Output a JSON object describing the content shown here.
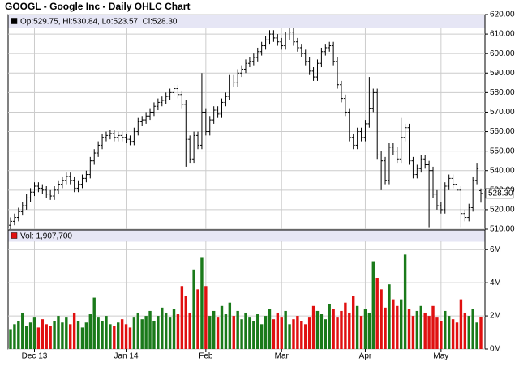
{
  "chart_data": [
    {
      "type": "ohlc",
      "title": "GOOGL - Google Inc - Daily OHLC Chart",
      "header": "Op:529.75, Hi:530.84, Lo:523.57, Cl:528.30",
      "color": "#000000",
      "categories": [
        null,
        null,
        null,
        null,
        null,
        null,
        "Dec 13",
        null,
        null,
        null,
        null,
        null,
        null,
        null,
        null,
        null,
        null,
        null,
        null,
        null,
        null,
        null,
        null,
        null,
        null,
        null,
        null,
        null,
        null,
        "Jan 14",
        null,
        null,
        null,
        null,
        null,
        null,
        null,
        null,
        null,
        null,
        null,
        null,
        null,
        null,
        null,
        null,
        null,
        null,
        null,
        "Feb",
        null,
        null,
        null,
        null,
        null,
        null,
        null,
        null,
        null,
        null,
        null,
        null,
        null,
        null,
        null,
        null,
        null,
        null,
        "Mar",
        null,
        null,
        null,
        null,
        null,
        null,
        null,
        null,
        null,
        null,
        null,
        null,
        null,
        null,
        null,
        null,
        null,
        null,
        null,
        null,
        "Apr",
        null,
        null,
        null,
        null,
        null,
        null,
        null,
        null,
        null,
        null,
        null,
        null,
        null,
        null,
        null,
        null,
        null,
        null,
        "May",
        null,
        null,
        null,
        null,
        null,
        null,
        null,
        null,
        null,
        null
      ],
      "open": [
        512,
        514,
        516,
        519,
        522,
        526,
        529,
        532,
        531,
        530,
        528,
        527,
        530,
        533,
        535,
        537,
        535,
        531,
        533,
        536,
        538,
        545,
        549,
        553,
        557,
        558,
        559,
        557,
        558,
        557,
        556,
        555,
        560,
        565,
        566,
        568,
        570,
        573,
        575,
        576,
        578,
        580,
        582,
        579,
        574,
        556,
        546,
        558,
        553,
        570,
        560,
        566,
        571,
        569,
        575,
        578,
        587,
        585,
        590,
        592,
        595,
        596,
        598,
        601,
        604,
        607,
        610,
        608,
        606,
        604,
        609,
        611,
        606,
        603,
        600,
        596,
        591,
        588,
        595,
        601,
        603,
        604,
        596,
        584,
        577,
        570,
        557,
        553,
        560,
        557,
        564,
        572,
        580,
        548,
        545,
        535,
        552,
        550,
        546,
        557,
        562,
        545,
        538,
        541,
        546,
        543,
        540,
        528,
        522,
        520,
        532,
        536,
        533,
        530,
        518,
        516,
        521,
        535,
        529.75
      ],
      "high": [
        516,
        518,
        521,
        524,
        528,
        531,
        534,
        534,
        533,
        532,
        530,
        532,
        535,
        537,
        539,
        539,
        537,
        535,
        538,
        540,
        547,
        551,
        555,
        559,
        560,
        561,
        561,
        560,
        560,
        559,
        558,
        562,
        567,
        568,
        570,
        572,
        575,
        577,
        578,
        580,
        582,
        584,
        584,
        581,
        576,
        558,
        560,
        560,
        590,
        572,
        568,
        573,
        573,
        577,
        580,
        589,
        589,
        592,
        594,
        597,
        598,
        600,
        603,
        606,
        609,
        612,
        612,
        610,
        608,
        611,
        613,
        613,
        608,
        605,
        602,
        598,
        593,
        597,
        603,
        605,
        606,
        606,
        598,
        586,
        579,
        572,
        559,
        562,
        562,
        566,
        588,
        582,
        582,
        550,
        547,
        554,
        554,
        552,
        567,
        564,
        564,
        547,
        543,
        548,
        548,
        545,
        542,
        530,
        524,
        534,
        538,
        538,
        535,
        532,
        520,
        523,
        537,
        544,
        530.84
      ],
      "low": [
        510,
        512,
        514,
        517,
        520,
        524,
        527,
        529,
        528,
        526,
        525,
        525,
        528,
        531,
        533,
        533,
        529,
        529,
        531,
        534,
        536,
        543,
        547,
        551,
        555,
        556,
        555,
        555,
        555,
        554,
        553,
        553,
        558,
        563,
        564,
        566,
        568,
        571,
        573,
        574,
        576,
        578,
        577,
        572,
        542,
        544,
        544,
        551,
        551,
        558,
        558,
        564,
        567,
        567,
        573,
        576,
        583,
        583,
        588,
        590,
        593,
        594,
        596,
        599,
        602,
        605,
        606,
        604,
        602,
        602,
        607,
        604,
        601,
        598,
        594,
        589,
        586,
        586,
        593,
        599,
        601,
        594,
        582,
        575,
        568,
        555,
        551,
        551,
        555,
        555,
        562,
        570,
        546,
        530,
        533,
        533,
        548,
        544,
        544,
        555,
        543,
        536,
        536,
        539,
        541,
        511,
        526,
        520,
        518,
        518,
        530,
        531,
        528,
        511,
        514,
        514,
        519,
        533,
        523.57
      ],
      "close": [
        514,
        516,
        519,
        522,
        526,
        529,
        532,
        531,
        530,
        528,
        527,
        530,
        533,
        535,
        537,
        535,
        531,
        533,
        536,
        538,
        545,
        549,
        553,
        557,
        558,
        559,
        557,
        558,
        557,
        556,
        555,
        560,
        565,
        566,
        568,
        570,
        573,
        575,
        576,
        578,
        580,
        582,
        579,
        574,
        556,
        546,
        558,
        553,
        570,
        560,
        566,
        571,
        569,
        575,
        578,
        587,
        585,
        590,
        592,
        595,
        596,
        598,
        601,
        604,
        607,
        610,
        608,
        606,
        604,
        609,
        611,
        606,
        603,
        600,
        596,
        591,
        588,
        595,
        601,
        603,
        604,
        596,
        584,
        577,
        570,
        557,
        553,
        560,
        557,
        564,
        572,
        580,
        548,
        545,
        535,
        552,
        550,
        546,
        557,
        562,
        545,
        538,
        541,
        546,
        543,
        540,
        528,
        522,
        520,
        532,
        536,
        533,
        530,
        518,
        516,
        521,
        535,
        541,
        528.3
      ],
      "ylim": [
        510,
        620
      ],
      "yticks": [
        {
          "value": 510,
          "label": "510.00"
        },
        {
          "value": 520,
          "label": "520.00"
        },
        {
          "value": 530,
          "label": "530.00"
        },
        {
          "value": 540,
          "label": "540.00"
        },
        {
          "value": 550,
          "label": "550.00"
        },
        {
          "value": 560,
          "label": "560.00"
        },
        {
          "value": 570,
          "label": "570.00"
        },
        {
          "value": 580,
          "label": "580.00"
        },
        {
          "value": 590,
          "label": "590.00"
        },
        {
          "value": 600,
          "label": "600.00"
        },
        {
          "value": 610,
          "label": "610.00"
        },
        {
          "value": 620,
          "label": "620.00"
        }
      ],
      "last": {
        "value": 528.3,
        "label": "528.30"
      },
      "grid": true
    },
    {
      "type": "volume",
      "header": "Vol: 1,907,700",
      "up_color": "#1a7a1a",
      "down_color": "#e01010",
      "values": [
        1200000,
        1500000,
        1700000,
        2200000,
        1400000,
        1600000,
        1900000,
        1300000,
        1800000,
        1500000,
        1400000,
        1700000,
        2000000,
        1600000,
        1900000,
        1500000,
        2200000,
        1700000,
        1300000,
        1600000,
        2100000,
        3100000,
        1900000,
        1700000,
        2000000,
        1500000,
        1400000,
        1600000,
        1800000,
        1500000,
        1300000,
        1900000,
        2200000,
        1800000,
        2000000,
        2300000,
        1700000,
        2000000,
        2500000,
        2200000,
        1900000,
        2400000,
        2100000,
        3800000,
        3200000,
        2200000,
        4800000,
        3600000,
        5500000,
        3800000,
        2000000,
        2300000,
        1900000,
        2600000,
        2100000,
        2800000,
        2000000,
        2300000,
        1800000,
        2200000,
        1900000,
        1700000,
        2100000,
        1500000,
        2000000,
        2400000,
        1800000,
        2200000,
        1900000,
        2300000,
        1500000,
        1800000,
        2000000,
        1700000,
        1500000,
        1900000,
        2600000,
        2300000,
        2100000,
        1800000,
        2700000,
        2400000,
        1900000,
        2300000,
        2800000,
        2200000,
        3200000,
        2600000,
        2000000,
        2400000,
        2200000,
        5300000,
        4300000,
        3600000,
        2500000,
        3900000,
        3000000,
        2600000,
        3000000,
        5700000,
        2400000,
        2000000,
        2300000,
        2600000,
        2200000,
        2000000,
        2600000,
        1900000,
        1700000,
        2300000,
        2000000,
        1800000,
        1600000,
        3000000,
        2200000,
        2000000,
        2400000,
        1600000,
        1907700
      ],
      "ylim": [
        0,
        6500000
      ],
      "yticks": [
        {
          "value": 0,
          "label": "0M"
        },
        {
          "value": 2000000,
          "label": "2M"
        },
        {
          "value": 4000000,
          "label": "4M"
        },
        {
          "value": 6000000,
          "label": "6M"
        }
      ],
      "grid": true
    }
  ]
}
